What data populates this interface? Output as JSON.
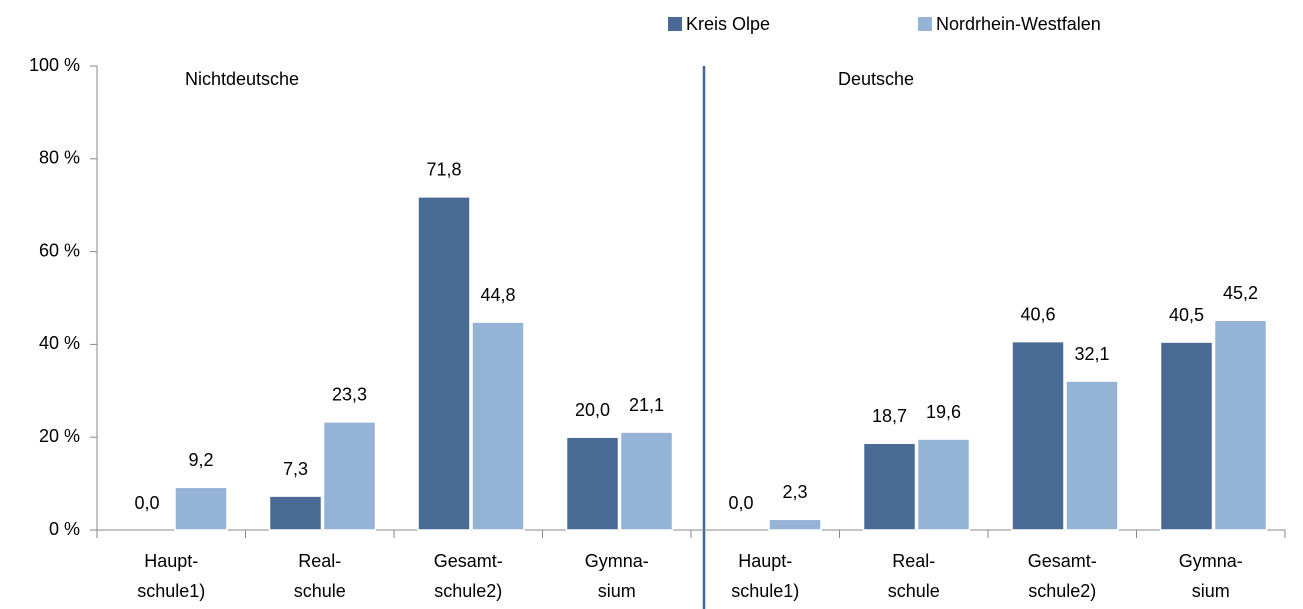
{
  "chart_data": {
    "type": "bar",
    "categories": [
      [
        "Haupt-",
        "schule1)"
      ],
      [
        "Real-",
        "schule"
      ],
      [
        "Gesamt-",
        "schule2)"
      ],
      [
        "Gymna-",
        "sium"
      ],
      [
        "Haupt-",
        "schule1)"
      ],
      [
        "Real-",
        "schule"
      ],
      [
        "Gesamt-",
        "schule2)"
      ],
      [
        "Gymna-",
        "sium"
      ]
    ],
    "annotations": [
      "Nichtdeutsche",
      "Deutsche"
    ],
    "series": [
      {
        "name": "Kreis Olpe",
        "color": "#4a6a96",
        "values": [
          0.0,
          7.3,
          71.8,
          20.0,
          0.0,
          18.7,
          40.6,
          40.5
        ],
        "value_labels": [
          "0,0",
          "7,3",
          "71,8",
          "20,0",
          "0,0",
          "18,7",
          "40,6",
          "40,5"
        ]
      },
      {
        "name": "Nordrhein-Westfalen",
        "color": "#95b3d7",
        "values": [
          9.2,
          23.3,
          44.8,
          21.1,
          2.3,
          19.6,
          32.1,
          45.2
        ],
        "value_labels": [
          "9,2",
          "23,3",
          "44,8",
          "21,1",
          "2,3",
          "19,6",
          "32,1",
          "45,2"
        ]
      }
    ],
    "ylim": [
      0,
      100
    ],
    "yticks": [
      {
        "value": 0,
        "label": "0 %"
      },
      {
        "value": 20,
        "label": "20 %"
      },
      {
        "value": 40,
        "label": "40 %"
      },
      {
        "value": 60,
        "label": "60 %"
      },
      {
        "value": 80,
        "label": "80 %"
      },
      {
        "value": 100,
        "label": "100 %"
      }
    ],
    "legend": "top-right"
  }
}
